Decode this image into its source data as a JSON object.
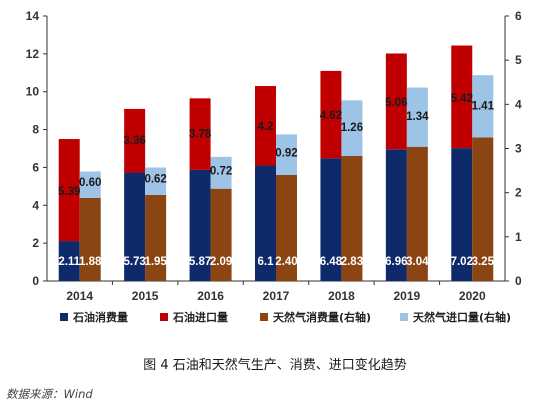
{
  "caption": "图 4 石油和天然气生产、消费、进口变化趋势",
  "source": "数据来源：Wind",
  "chart_data": {
    "type": "bar",
    "categories": [
      "2014",
      "2015",
      "2016",
      "2017",
      "2018",
      "2019",
      "2020"
    ],
    "y_left": {
      "ticks": [
        "0",
        "2",
        "4",
        "6",
        "8",
        "10",
        "12",
        "14"
      ],
      "ylim": [
        0,
        14
      ]
    },
    "y_right": {
      "ticks": [
        "0",
        "1",
        "2",
        "3",
        "4",
        "5",
        "6"
      ],
      "ylim": [
        0,
        6
      ]
    },
    "grid": false,
    "legend_position": "bottom",
    "stacks": [
      {
        "axis": "left",
        "series": [
          {
            "name": "石油消费量",
            "color": "#0f2a6b",
            "label_color": "#ffffff",
            "values": [
              2.11,
              5.73,
              5.87,
              6.1,
              6.48,
              6.96,
              7.02
            ],
            "labels": [
              "2.11",
              "5.73",
              "5.87",
              "6.1",
              "6.48",
              "6.96",
              "7.02"
            ]
          },
          {
            "name": "石油进口量",
            "color": "#c00000",
            "label_color": "#1a1a1a",
            "values": [
              5.39,
              3.36,
              3.78,
              4.2,
              4.62,
              5.06,
              5.42
            ],
            "labels": [
              "5.39",
              "3.36",
              "3.78",
              "4.2",
              "4.62",
              "5.06",
              "5.42"
            ]
          }
        ]
      },
      {
        "axis": "right",
        "series": [
          {
            "name": "天然气消费量(右轴)",
            "color": "#8b4513",
            "label_color": "#ffffff",
            "values": [
              1.88,
              1.95,
              2.09,
              2.4,
              2.83,
              3.04,
              3.25
            ],
            "labels": [
              "1.88",
              "1.95",
              "2.09",
              "2.40",
              "2.83",
              "3.04",
              "3.25"
            ]
          },
          {
            "name": "天然气进口量(右轴)",
            "color": "#9dc3e6",
            "label_color": "#1a1a1a",
            "values": [
              0.6,
              0.62,
              0.72,
              0.92,
              1.26,
              1.34,
              1.41
            ],
            "labels": [
              "0.60",
              "0.62",
              "0.72",
              "0.92",
              "1.26",
              "1.34",
              "1.41"
            ]
          }
        ]
      }
    ]
  }
}
